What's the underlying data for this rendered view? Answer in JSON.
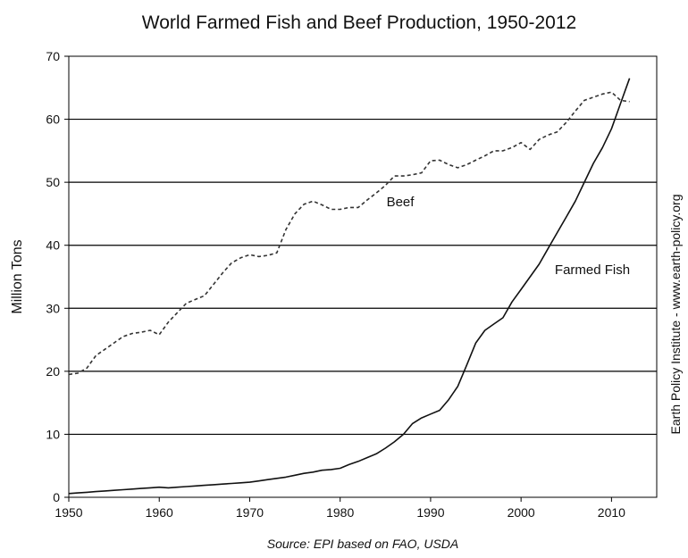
{
  "chart_data": {
    "type": "line",
    "title": "World Farmed Fish and Beef Production, 1950-2012",
    "xlabel": "",
    "ylabel": "Million Tons",
    "xlim": [
      1950,
      2015
    ],
    "ylim": [
      0,
      70
    ],
    "x_ticks": [
      "1950",
      "1960",
      "1970",
      "1980",
      "1990",
      "2000",
      "2010"
    ],
    "y_ticks": [
      "0",
      "10",
      "20",
      "30",
      "40",
      "50",
      "60",
      "70"
    ],
    "grid": "horizontal",
    "series": [
      {
        "name": "Beef",
        "style": "dashed",
        "color": "#333333",
        "x": [
          1950,
          1951,
          1952,
          1953,
          1954,
          1955,
          1956,
          1957,
          1958,
          1959,
          1960,
          1961,
          1962,
          1963,
          1964,
          1965,
          1966,
          1967,
          1968,
          1969,
          1970,
          1971,
          1972,
          1973,
          1974,
          1975,
          1976,
          1977,
          1978,
          1979,
          1980,
          1981,
          1982,
          1983,
          1984,
          1985,
          1986,
          1987,
          1988,
          1989,
          1990,
          1991,
          1992,
          1993,
          1994,
          1995,
          1996,
          1997,
          1998,
          1999,
          2000,
          2001,
          2002,
          2003,
          2004,
          2005,
          2006,
          2007,
          2008,
          2009,
          2010,
          2011,
          2012
        ],
        "y": [
          19.5,
          19.7,
          20.5,
          22.5,
          23.5,
          24.5,
          25.5,
          26.0,
          26.2,
          26.5,
          25.8,
          27.8,
          29.3,
          30.8,
          31.4,
          32.0,
          33.8,
          35.6,
          37.2,
          38.0,
          38.5,
          38.2,
          38.4,
          38.8,
          42.5,
          45.0,
          46.5,
          47.0,
          46.4,
          45.7,
          45.7,
          46.0,
          46.0,
          47.2,
          48.3,
          49.5,
          51.0,
          51.0,
          51.2,
          51.5,
          53.4,
          53.5,
          52.8,
          52.3,
          52.8,
          53.5,
          54.2,
          55.0,
          55.0,
          55.5,
          56.3,
          55.2,
          56.8,
          57.5,
          58.0,
          59.5,
          61.3,
          63.0,
          63.5,
          64.0,
          64.3,
          63.0,
          62.8
        ]
      },
      {
        "name": "Farmed Fish",
        "style": "solid",
        "color": "#111111",
        "x": [
          1950,
          1951,
          1952,
          1953,
          1954,
          1955,
          1956,
          1957,
          1958,
          1959,
          1960,
          1961,
          1962,
          1963,
          1964,
          1965,
          1966,
          1967,
          1968,
          1969,
          1970,
          1971,
          1972,
          1973,
          1974,
          1975,
          1976,
          1977,
          1978,
          1979,
          1980,
          1981,
          1982,
          1983,
          1984,
          1985,
          1986,
          1987,
          1988,
          1989,
          1990,
          1991,
          1992,
          1993,
          1994,
          1995,
          1996,
          1997,
          1998,
          1999,
          2000,
          2001,
          2002,
          2003,
          2004,
          2005,
          2006,
          2007,
          2008,
          2009,
          2010,
          2011,
          2012
        ],
        "y": [
          0.6,
          0.7,
          0.8,
          0.9,
          1.0,
          1.1,
          1.2,
          1.3,
          1.4,
          1.5,
          1.6,
          1.5,
          1.6,
          1.7,
          1.8,
          1.9,
          2.0,
          2.1,
          2.2,
          2.3,
          2.4,
          2.6,
          2.8,
          3.0,
          3.2,
          3.5,
          3.8,
          4.0,
          4.3,
          4.4,
          4.6,
          5.2,
          5.7,
          6.3,
          6.9,
          7.8,
          8.8,
          10.0,
          11.7,
          12.6,
          13.2,
          13.8,
          15.5,
          17.6,
          21.0,
          24.5,
          26.5,
          27.5,
          28.5,
          31.0,
          33.0,
          35.0,
          37.0,
          39.5,
          42.0,
          44.5,
          47.0,
          50.0,
          53.0,
          55.5,
          58.5,
          62.5,
          66.5
        ]
      }
    ],
    "annotations": [
      {
        "text": "Beef",
        "series": "Beef"
      },
      {
        "text": "Farmed Fish",
        "series": "Farmed Fish"
      }
    ],
    "side_note": "Earth Policy Institute - www.earth-policy.org",
    "source": "Source: EPI based on FAO, USDA"
  }
}
